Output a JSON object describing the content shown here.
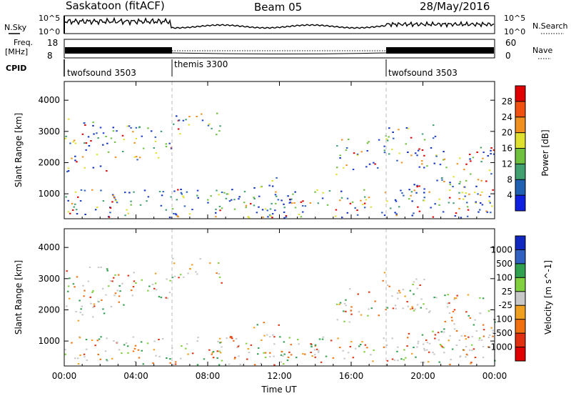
{
  "header": {
    "station": "Saskatoon (fitACF)",
    "beam": "Beam 05",
    "date": "28/May/2016"
  },
  "top_panels": {
    "nsky_label": "N.Sky",
    "nsky_ticks": [
      "10^5",
      "10^0"
    ],
    "nsearch_label": "N.Search",
    "nsearch_ticks": [
      "10^5",
      "10^0"
    ],
    "freq_label": "Freq.",
    "freq_unit": "[MHz]",
    "freq_ticks": [
      "18",
      "8"
    ],
    "nave_label": "Nave",
    "nave_ticks": [
      "60",
      "0"
    ],
    "cpid_label": "CPID"
  },
  "cpid_segments": [
    {
      "name": "twofsound 3503",
      "start": "00:00",
      "end": "06:00"
    },
    {
      "name": "themis 3300",
      "start": "06:00",
      "end": "18:00"
    },
    {
      "name": "twofsound 3503",
      "start": "18:00",
      "end": "24:00"
    }
  ],
  "chart_data": [
    {
      "type": "heatmap",
      "title": "Power",
      "ylabel": "Slant Range [km]",
      "xlabel": "Time UT",
      "x_ticks": [
        "00:00",
        "04:00",
        "08:00",
        "12:00",
        "16:00",
        "20:00",
        "00:00"
      ],
      "y_ticks": [
        1000,
        2000,
        3000,
        4000
      ],
      "xlim_hours": [
        0,
        24
      ],
      "ylim_km": [
        200,
        4600
      ],
      "colorbar": {
        "label": "Power [dB]",
        "ticks": [
          "28",
          "24",
          "20",
          "16",
          "12",
          "8",
          "4"
        ],
        "colors": [
          "#e00000",
          "#f05010",
          "#f09020",
          "#e0e030",
          "#70c040",
          "#40a070",
          "#2060b0",
          "#1020e0"
        ]
      }
    },
    {
      "type": "heatmap",
      "title": "Velocity",
      "ylabel": "Slant Range [km]",
      "xlabel": "Time UT",
      "x_ticks": [
        "00:00",
        "04:00",
        "08:00",
        "12:00",
        "16:00",
        "20:00",
        "00:00"
      ],
      "y_ticks": [
        1000,
        2000,
        3000,
        4000
      ],
      "xlim_hours": [
        0,
        24
      ],
      "ylim_km": [
        200,
        4600
      ],
      "colorbar": {
        "label": "Velocity [m s^-1]",
        "ticks": [
          "1000",
          "500",
          "100",
          "25",
          "-25",
          "-100",
          "-500",
          "-1000"
        ],
        "colors": [
          "#1028c0",
          "#3060c0",
          "#30a050",
          "#80d040",
          "#c8c8c8",
          "#f0a020",
          "#f07010",
          "#e03010",
          "#e00000"
        ]
      }
    }
  ],
  "footer": {
    "xlabel": "Time UT"
  }
}
